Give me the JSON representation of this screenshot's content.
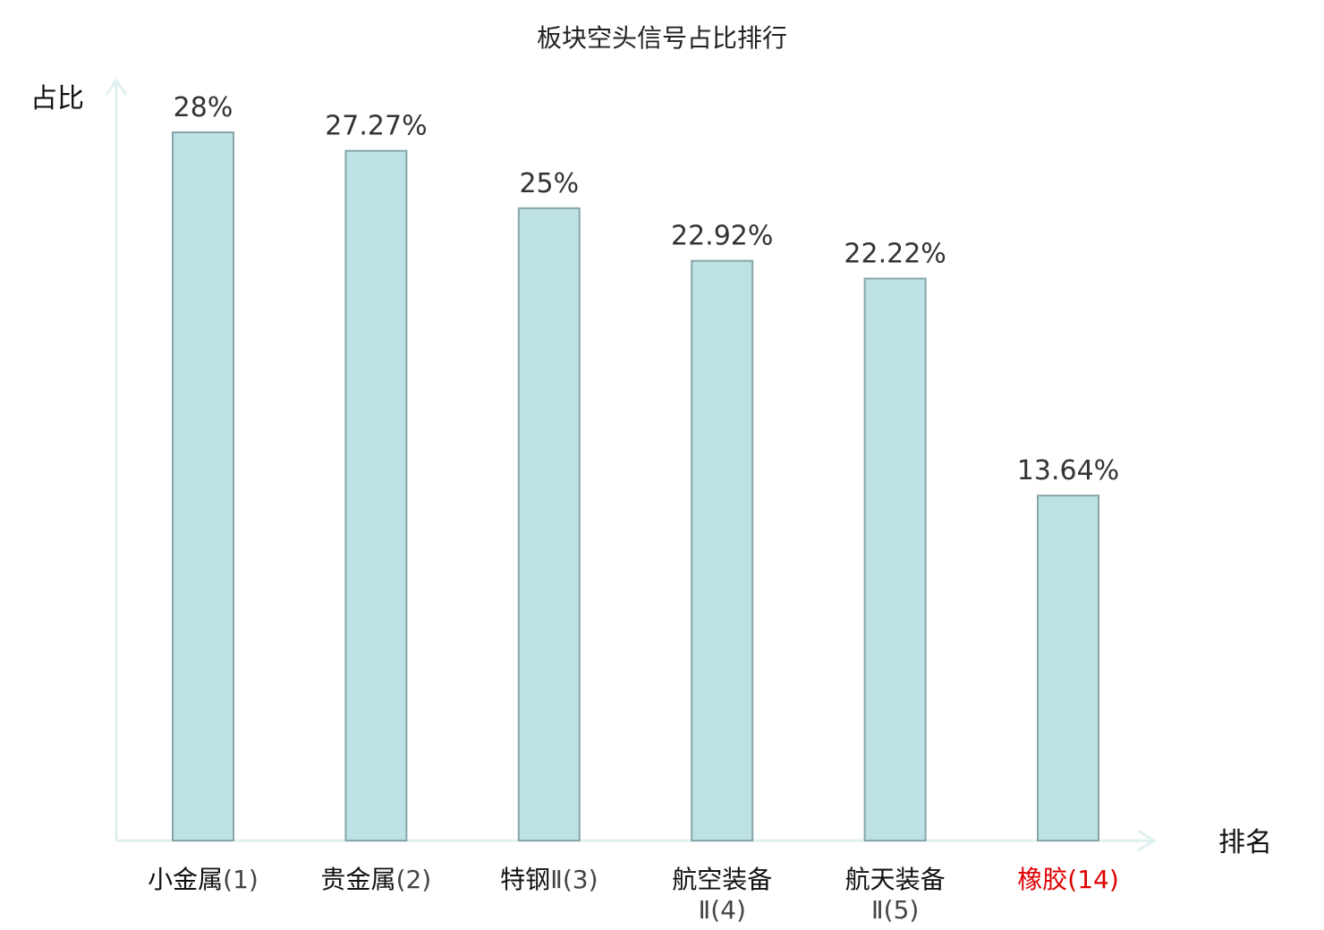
{
  "chart_data": {
    "type": "bar",
    "title": "板块空头信号占比排行",
    "xlabel": "排名",
    "ylabel": "占比",
    "ylim": [
      0,
      28
    ],
    "grid": false,
    "legend": "none",
    "categories": [
      {
        "name": "小金属",
        "rank": "(1)",
        "highlight": false
      },
      {
        "name": "贵金属",
        "rank": "(2)",
        "highlight": false
      },
      {
        "name": "特钢",
        "rank": "Ⅱ(3)",
        "highlight": false
      },
      {
        "name": "航空装备",
        "rank": "Ⅱ(4)",
        "highlight": false
      },
      {
        "name": "航天装备",
        "rank": "Ⅱ(5)",
        "highlight": false
      },
      {
        "name": "橡胶",
        "rank": "(14)",
        "highlight": true
      }
    ],
    "values": [
      28,
      27.27,
      25,
      22.92,
      22.22,
      13.64
    ],
    "value_labels": [
      "28%",
      "27.27%",
      "25%",
      "22.92%",
      "22.22%",
      "13.64%"
    ]
  },
  "colors": {
    "bar_fill": "#bde1e4",
    "bar_stroke": "#88a6a8",
    "axis": "#dff1ef",
    "highlight_text": "#e00000",
    "normal_text": "#111111",
    "rank_text": "#444444"
  }
}
